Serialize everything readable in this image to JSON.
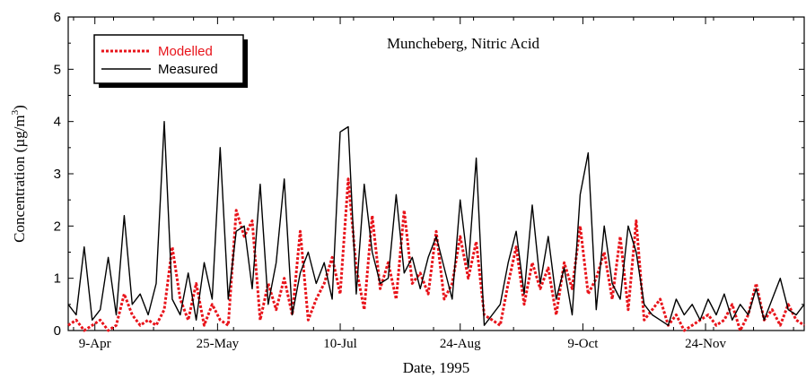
{
  "chart_data": {
    "type": "line",
    "title": "Muncheberg, Nitric Acid",
    "xlabel": "Date, 1995",
    "ylabel_prefix": "Concentration (µg/m",
    "ylabel_sup": "3",
    "ylabel_suffix": ")",
    "ylim": [
      0,
      6
    ],
    "yticks": [
      "0",
      "1",
      "2",
      "3",
      "4",
      "5",
      "6"
    ],
    "x_start": "1995-03-30",
    "x_end": "1995-12-31",
    "xticks": [
      {
        "label": "9-Apr",
        "date": "1995-04-09"
      },
      {
        "label": "25-May",
        "date": "1995-05-25"
      },
      {
        "label": "10-Jul",
        "date": "1995-07-10"
      },
      {
        "label": "24-Aug",
        "date": "1995-08-24"
      },
      {
        "label": "9-Oct",
        "date": "1995-10-09"
      },
      {
        "label": "24-Nov",
        "date": "1995-11-24"
      }
    ],
    "grid": false,
    "legend_position": "top-left",
    "series": [
      {
        "name": "Modelled",
        "color": "#e8141b",
        "style": "dotted",
        "x": [
          "1995-03-30",
          "1995-04-02",
          "1995-04-05",
          "1995-04-08",
          "1995-04-11",
          "1995-04-14",
          "1995-04-17",
          "1995-04-20",
          "1995-04-23",
          "1995-04-26",
          "1995-04-29",
          "1995-05-02",
          "1995-05-05",
          "1995-05-08",
          "1995-05-11",
          "1995-05-14",
          "1995-05-17",
          "1995-05-20",
          "1995-05-23",
          "1995-05-26",
          "1995-05-29",
          "1995-06-01",
          "1995-06-04",
          "1995-06-07",
          "1995-06-10",
          "1995-06-13",
          "1995-06-16",
          "1995-06-19",
          "1995-06-22",
          "1995-06-25",
          "1995-06-28",
          "1995-07-01",
          "1995-07-04",
          "1995-07-07",
          "1995-07-10",
          "1995-07-13",
          "1995-07-16",
          "1995-07-19",
          "1995-07-22",
          "1995-07-25",
          "1995-07-28",
          "1995-07-31",
          "1995-08-03",
          "1995-08-06",
          "1995-08-09",
          "1995-08-12",
          "1995-08-15",
          "1995-08-18",
          "1995-08-21",
          "1995-08-24",
          "1995-08-27",
          "1995-08-30",
          "1995-09-02",
          "1995-09-05",
          "1995-09-08",
          "1995-09-11",
          "1995-09-14",
          "1995-09-17",
          "1995-09-20",
          "1995-09-23",
          "1995-09-26",
          "1995-09-29",
          "1995-10-02",
          "1995-10-05",
          "1995-10-08",
          "1995-10-11",
          "1995-10-14",
          "1995-10-17",
          "1995-10-20",
          "1995-10-23",
          "1995-10-26",
          "1995-10-29",
          "1995-11-01",
          "1995-11-04",
          "1995-11-07",
          "1995-11-10",
          "1995-11-13",
          "1995-11-16",
          "1995-11-19",
          "1995-11-22",
          "1995-11-25",
          "1995-11-28",
          "1995-12-01",
          "1995-12-04",
          "1995-12-07",
          "1995-12-10",
          "1995-12-13",
          "1995-12-16",
          "1995-12-19",
          "1995-12-22",
          "1995-12-25",
          "1995-12-28",
          "1995-12-31"
        ],
        "y": [
          0.1,
          0.2,
          0.0,
          0.1,
          0.2,
          0.0,
          0.1,
          0.7,
          0.3,
          0.1,
          0.2,
          0.1,
          0.4,
          1.6,
          0.6,
          0.2,
          0.9,
          0.1,
          0.5,
          0.2,
          0.1,
          2.3,
          1.8,
          2.1,
          0.2,
          0.9,
          0.4,
          1.0,
          0.3,
          1.9,
          0.2,
          0.6,
          0.9,
          1.4,
          0.7,
          2.9,
          1.2,
          0.4,
          2.2,
          0.8,
          1.3,
          0.6,
          2.3,
          0.9,
          1.1,
          0.7,
          1.9,
          0.6,
          0.9,
          1.8,
          1.0,
          1.7,
          0.3,
          0.2,
          0.1,
          0.9,
          1.6,
          0.5,
          1.3,
          0.8,
          1.2,
          0.3,
          1.3,
          0.8,
          2.0,
          0.7,
          1.0,
          1.5,
          0.6,
          1.8,
          0.4,
          2.1,
          0.2,
          0.4,
          0.6,
          0.1,
          0.3,
          0.0,
          0.1,
          0.2,
          0.3,
          0.1,
          0.2,
          0.5,
          0.0,
          0.3,
          0.9,
          0.2,
          0.4,
          0.1,
          0.5,
          0.2,
          0.1
        ]
      },
      {
        "name": "Measured",
        "color": "#000000",
        "style": "solid",
        "x": [
          "1995-03-30",
          "1995-04-02",
          "1995-04-05",
          "1995-04-08",
          "1995-04-11",
          "1995-04-14",
          "1995-04-17",
          "1995-04-20",
          "1995-04-23",
          "1995-04-26",
          "1995-04-29",
          "1995-05-02",
          "1995-05-05",
          "1995-05-08",
          "1995-05-11",
          "1995-05-14",
          "1995-05-17",
          "1995-05-20",
          "1995-05-23",
          "1995-05-26",
          "1995-05-29",
          "1995-06-01",
          "1995-06-04",
          "1995-06-07",
          "1995-06-10",
          "1995-06-13",
          "1995-06-16",
          "1995-06-19",
          "1995-06-22",
          "1995-06-25",
          "1995-06-28",
          "1995-07-01",
          "1995-07-04",
          "1995-07-07",
          "1995-07-10",
          "1995-07-13",
          "1995-07-16",
          "1995-07-19",
          "1995-07-22",
          "1995-07-25",
          "1995-07-28",
          "1995-07-31",
          "1995-08-03",
          "1995-08-06",
          "1995-08-09",
          "1995-08-12",
          "1995-08-15",
          "1995-08-18",
          "1995-08-21",
          "1995-08-24",
          "1995-08-27",
          "1995-08-30",
          "1995-09-02",
          "1995-09-05",
          "1995-09-08",
          "1995-09-11",
          "1995-09-14",
          "1995-09-17",
          "1995-09-20",
          "1995-09-23",
          "1995-09-26",
          "1995-09-29",
          "1995-10-02",
          "1995-10-05",
          "1995-10-08",
          "1995-10-11",
          "1995-10-14",
          "1995-10-17",
          "1995-10-20",
          "1995-10-23",
          "1995-10-26",
          "1995-10-29",
          "1995-11-01",
          "1995-11-04",
          "1995-11-07",
          "1995-11-10",
          "1995-11-13",
          "1995-11-16",
          "1995-11-19",
          "1995-11-22",
          "1995-11-25",
          "1995-11-28",
          "1995-12-01",
          "1995-12-04",
          "1995-12-07",
          "1995-12-10",
          "1995-12-13",
          "1995-12-16",
          "1995-12-19",
          "1995-12-22",
          "1995-12-25",
          "1995-12-28",
          "1995-12-31"
        ],
        "y": [
          0.5,
          0.3,
          1.6,
          0.2,
          0.4,
          1.4,
          0.3,
          2.2,
          0.5,
          0.7,
          0.3,
          0.9,
          4.0,
          0.6,
          0.3,
          1.1,
          0.2,
          1.3,
          0.6,
          3.5,
          0.6,
          1.9,
          2.0,
          0.8,
          2.8,
          0.5,
          1.3,
          2.9,
          0.3,
          1.1,
          1.5,
          0.9,
          1.3,
          0.6,
          3.8,
          3.9,
          0.7,
          2.8,
          1.5,
          0.9,
          1.0,
          2.6,
          1.1,
          1.4,
          0.8,
          1.4,
          1.8,
          1.2,
          0.6,
          2.5,
          1.2,
          3.3,
          0.1,
          0.3,
          0.5,
          1.3,
          1.9,
          0.7,
          2.4,
          0.9,
          1.8,
          0.6,
          1.2,
          0.3,
          2.6,
          3.4,
          0.4,
          2.0,
          0.9,
          0.6,
          2.0,
          1.5,
          0.5,
          0.3,
          0.2,
          0.1,
          0.6,
          0.3,
          0.5,
          0.2,
          0.6,
          0.3,
          0.7,
          0.2,
          0.5,
          0.3,
          0.8,
          0.2,
          0.6,
          1.0,
          0.4,
          0.3,
          0.5
        ]
      }
    ]
  }
}
